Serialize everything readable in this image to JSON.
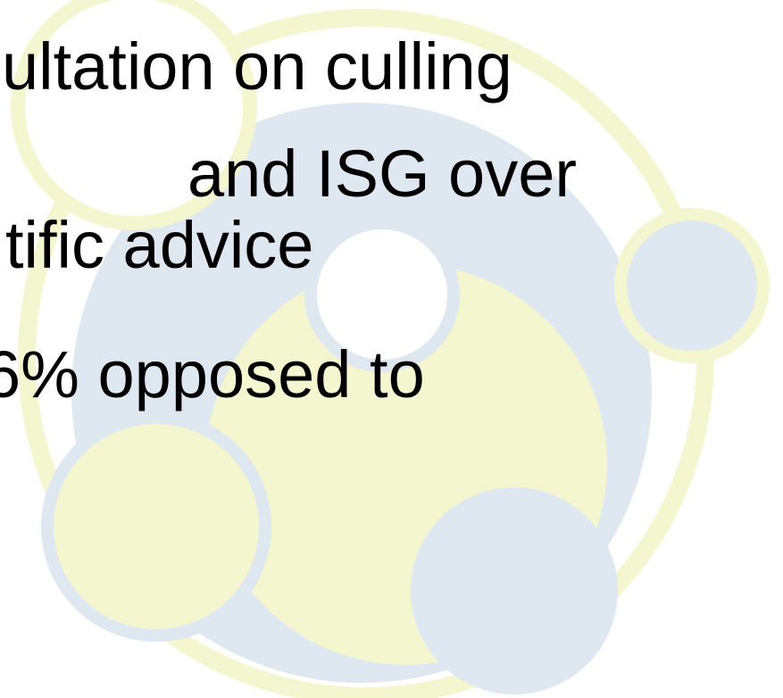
{
  "body": {
    "lines": [
      "ultation on culling",
      "and ISG over",
      "tific advice",
      "6% opposed to"
    ]
  }
}
